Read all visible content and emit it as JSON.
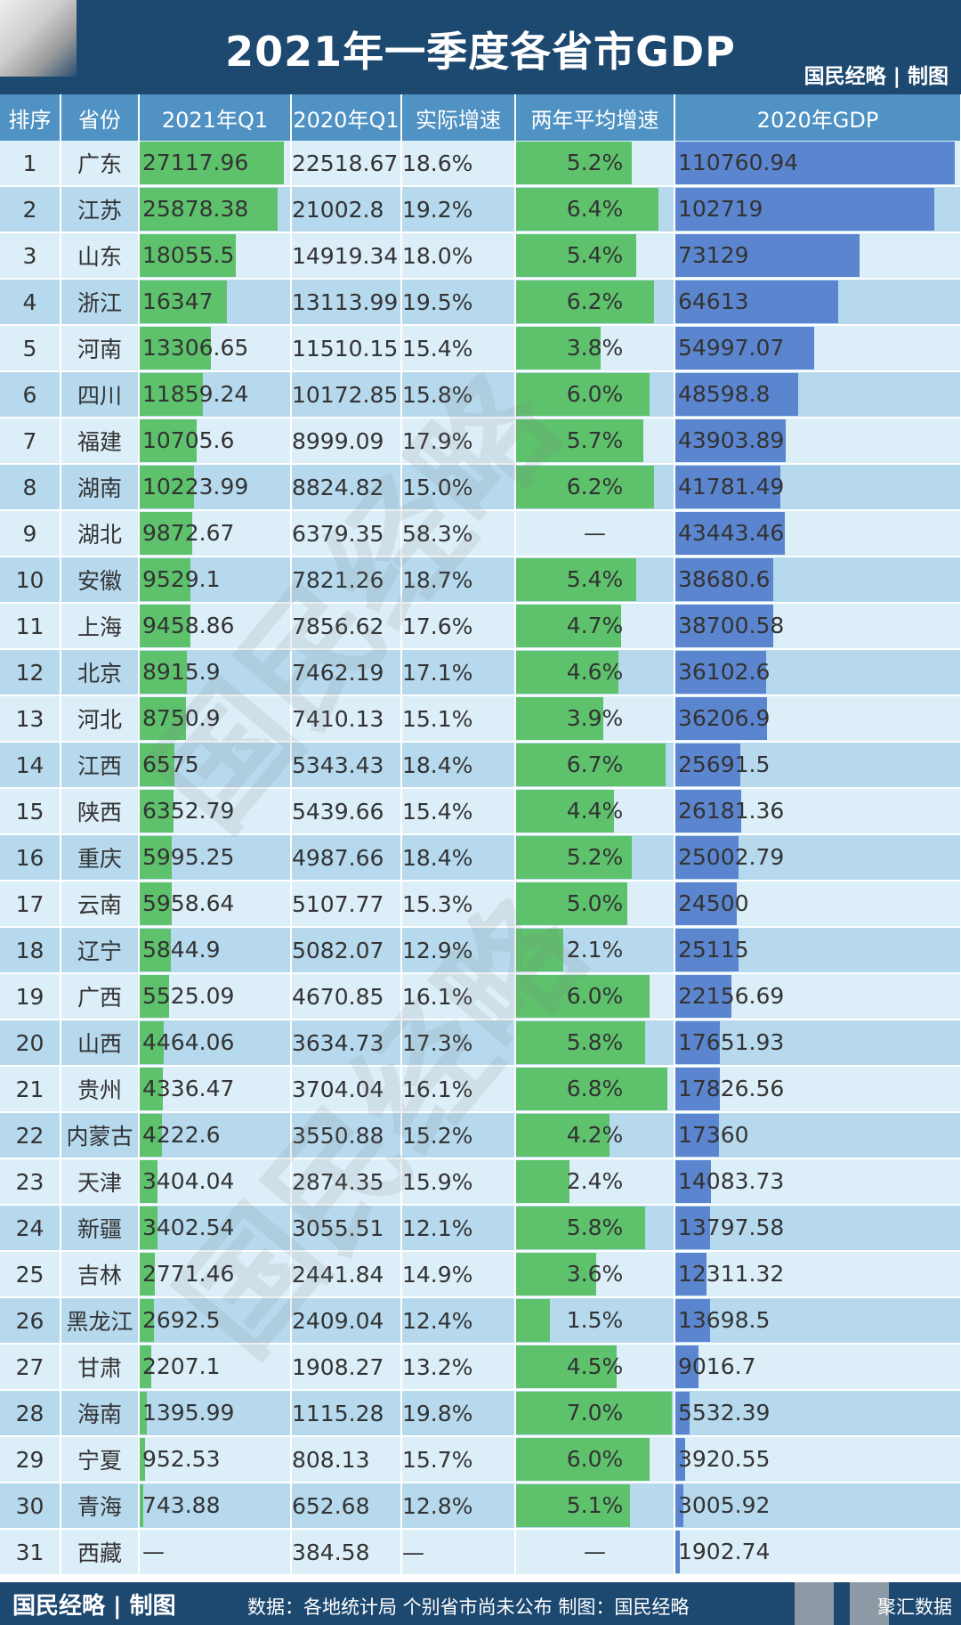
{
  "header": {
    "title": "2021年一季度各省市GDP",
    "brand": "国民经略 | 制图"
  },
  "footer": {
    "brand": "国民经略 | 制图",
    "source": "数据：各地统计局 个别省市尚未公布 制图：国民经略",
    "tag": "聚汇数据"
  },
  "watermark": "国民经略",
  "colors": {
    "header_bg": "#1d4870",
    "column_header_bg": "#4f92c3",
    "row_light": "#dceef8",
    "row_dark": "#b6d9ee",
    "bar_green": "#5ec26c",
    "bar_blue": "#5b86cf"
  },
  "chart_data": {
    "type": "table",
    "columns": [
      "排序",
      "省份",
      "2021年Q1",
      "2020年Q1",
      "实际增速",
      "两年平均增速",
      "2020年GDP"
    ],
    "rows": [
      {
        "rank": "1",
        "province": "广东",
        "q1_2021": "27117.96",
        "q1_2020": "22518.67",
        "growth": "18.6%",
        "avg_growth": "5.2%",
        "gdp_2020": "110760.94"
      },
      {
        "rank": "2",
        "province": "江苏",
        "q1_2021": "25878.38",
        "q1_2020": "21002.8",
        "growth": "19.2%",
        "avg_growth": "6.4%",
        "gdp_2020": "102719"
      },
      {
        "rank": "3",
        "province": "山东",
        "q1_2021": "18055.5",
        "q1_2020": "14919.34",
        "growth": "18.0%",
        "avg_growth": "5.4%",
        "gdp_2020": "73129"
      },
      {
        "rank": "4",
        "province": "浙江",
        "q1_2021": "16347",
        "q1_2020": "13113.99",
        "growth": "19.5%",
        "avg_growth": "6.2%",
        "gdp_2020": "64613"
      },
      {
        "rank": "5",
        "province": "河南",
        "q1_2021": "13306.65",
        "q1_2020": "11510.15",
        "growth": "15.4%",
        "avg_growth": "3.8%",
        "gdp_2020": "54997.07"
      },
      {
        "rank": "6",
        "province": "四川",
        "q1_2021": "11859.24",
        "q1_2020": "10172.85",
        "growth": "15.8%",
        "avg_growth": "6.0%",
        "gdp_2020": "48598.8"
      },
      {
        "rank": "7",
        "province": "福建",
        "q1_2021": "10705.6",
        "q1_2020": "8999.09",
        "growth": "17.9%",
        "avg_growth": "5.7%",
        "gdp_2020": "43903.89"
      },
      {
        "rank": "8",
        "province": "湖南",
        "q1_2021": "10223.99",
        "q1_2020": "8824.82",
        "growth": "15.0%",
        "avg_growth": "6.2%",
        "gdp_2020": "41781.49"
      },
      {
        "rank": "9",
        "province": "湖北",
        "q1_2021": "9872.67",
        "q1_2020": "6379.35",
        "growth": "58.3%",
        "avg_growth": "—",
        "gdp_2020": "43443.46"
      },
      {
        "rank": "10",
        "province": "安徽",
        "q1_2021": "9529.1",
        "q1_2020": "7821.26",
        "growth": "18.7%",
        "avg_growth": "5.4%",
        "gdp_2020": "38680.6"
      },
      {
        "rank": "11",
        "province": "上海",
        "q1_2021": "9458.86",
        "q1_2020": "7856.62",
        "growth": "17.6%",
        "avg_growth": "4.7%",
        "gdp_2020": "38700.58"
      },
      {
        "rank": "12",
        "province": "北京",
        "q1_2021": "8915.9",
        "q1_2020": "7462.19",
        "growth": "17.1%",
        "avg_growth": "4.6%",
        "gdp_2020": "36102.6"
      },
      {
        "rank": "13",
        "province": "河北",
        "q1_2021": "8750.9",
        "q1_2020": "7410.13",
        "growth": "15.1%",
        "avg_growth": "3.9%",
        "gdp_2020": "36206.9"
      },
      {
        "rank": "14",
        "province": "江西",
        "q1_2021": "6575",
        "q1_2020": "5343.43",
        "growth": "18.4%",
        "avg_growth": "6.7%",
        "gdp_2020": "25691.5"
      },
      {
        "rank": "15",
        "province": "陕西",
        "q1_2021": "6352.79",
        "q1_2020": "5439.66",
        "growth": "15.4%",
        "avg_growth": "4.4%",
        "gdp_2020": "26181.36"
      },
      {
        "rank": "16",
        "province": "重庆",
        "q1_2021": "5995.25",
        "q1_2020": "4987.66",
        "growth": "18.4%",
        "avg_growth": "5.2%",
        "gdp_2020": "25002.79"
      },
      {
        "rank": "17",
        "province": "云南",
        "q1_2021": "5958.64",
        "q1_2020": "5107.77",
        "growth": "15.3%",
        "avg_growth": "5.0%",
        "gdp_2020": "24500"
      },
      {
        "rank": "18",
        "province": "辽宁",
        "q1_2021": "5844.9",
        "q1_2020": "5082.07",
        "growth": "12.9%",
        "avg_growth": "2.1%",
        "gdp_2020": "25115"
      },
      {
        "rank": "19",
        "province": "广西",
        "q1_2021": "5525.09",
        "q1_2020": "4670.85",
        "growth": "16.1%",
        "avg_growth": "6.0%",
        "gdp_2020": "22156.69"
      },
      {
        "rank": "20",
        "province": "山西",
        "q1_2021": "4464.06",
        "q1_2020": "3634.73",
        "growth": "17.3%",
        "avg_growth": "5.8%",
        "gdp_2020": "17651.93"
      },
      {
        "rank": "21",
        "province": "贵州",
        "q1_2021": "4336.47",
        "q1_2020": "3704.04",
        "growth": "16.1%",
        "avg_growth": "6.8%",
        "gdp_2020": "17826.56"
      },
      {
        "rank": "22",
        "province": "内蒙古",
        "q1_2021": "4222.6",
        "q1_2020": "3550.88",
        "growth": "15.2%",
        "avg_growth": "4.2%",
        "gdp_2020": "17360"
      },
      {
        "rank": "23",
        "province": "天津",
        "q1_2021": "3404.04",
        "q1_2020": "2874.35",
        "growth": "15.9%",
        "avg_growth": "2.4%",
        "gdp_2020": "14083.73"
      },
      {
        "rank": "24",
        "province": "新疆",
        "q1_2021": "3402.54",
        "q1_2020": "3055.51",
        "growth": "12.1%",
        "avg_growth": "5.8%",
        "gdp_2020": "13797.58"
      },
      {
        "rank": "25",
        "province": "吉林",
        "q1_2021": "2771.46",
        "q1_2020": "2441.84",
        "growth": "14.9%",
        "avg_growth": "3.6%",
        "gdp_2020": "12311.32"
      },
      {
        "rank": "26",
        "province": "黑龙江",
        "q1_2021": "2692.5",
        "q1_2020": "2409.04",
        "growth": "12.4%",
        "avg_growth": "1.5%",
        "gdp_2020": "13698.5"
      },
      {
        "rank": "27",
        "province": "甘肃",
        "q1_2021": "2207.1",
        "q1_2020": "1908.27",
        "growth": "13.2%",
        "avg_growth": "4.5%",
        "gdp_2020": "9016.7"
      },
      {
        "rank": "28",
        "province": "海南",
        "q1_2021": "1395.99",
        "q1_2020": "1115.28",
        "growth": "19.8%",
        "avg_growth": "7.0%",
        "gdp_2020": "5532.39"
      },
      {
        "rank": "29",
        "province": "宁夏",
        "q1_2021": "952.53",
        "q1_2020": "808.13",
        "growth": "15.7%",
        "avg_growth": "6.0%",
        "gdp_2020": "3920.55"
      },
      {
        "rank": "30",
        "province": "青海",
        "q1_2021": "743.88",
        "q1_2020": "652.68",
        "growth": "12.8%",
        "avg_growth": "5.1%",
        "gdp_2020": "3005.92"
      },
      {
        "rank": "31",
        "province": "西藏",
        "q1_2021": "—",
        "q1_2020": "384.58",
        "growth": "—",
        "avg_growth": "—",
        "gdp_2020": "1902.74"
      }
    ]
  }
}
